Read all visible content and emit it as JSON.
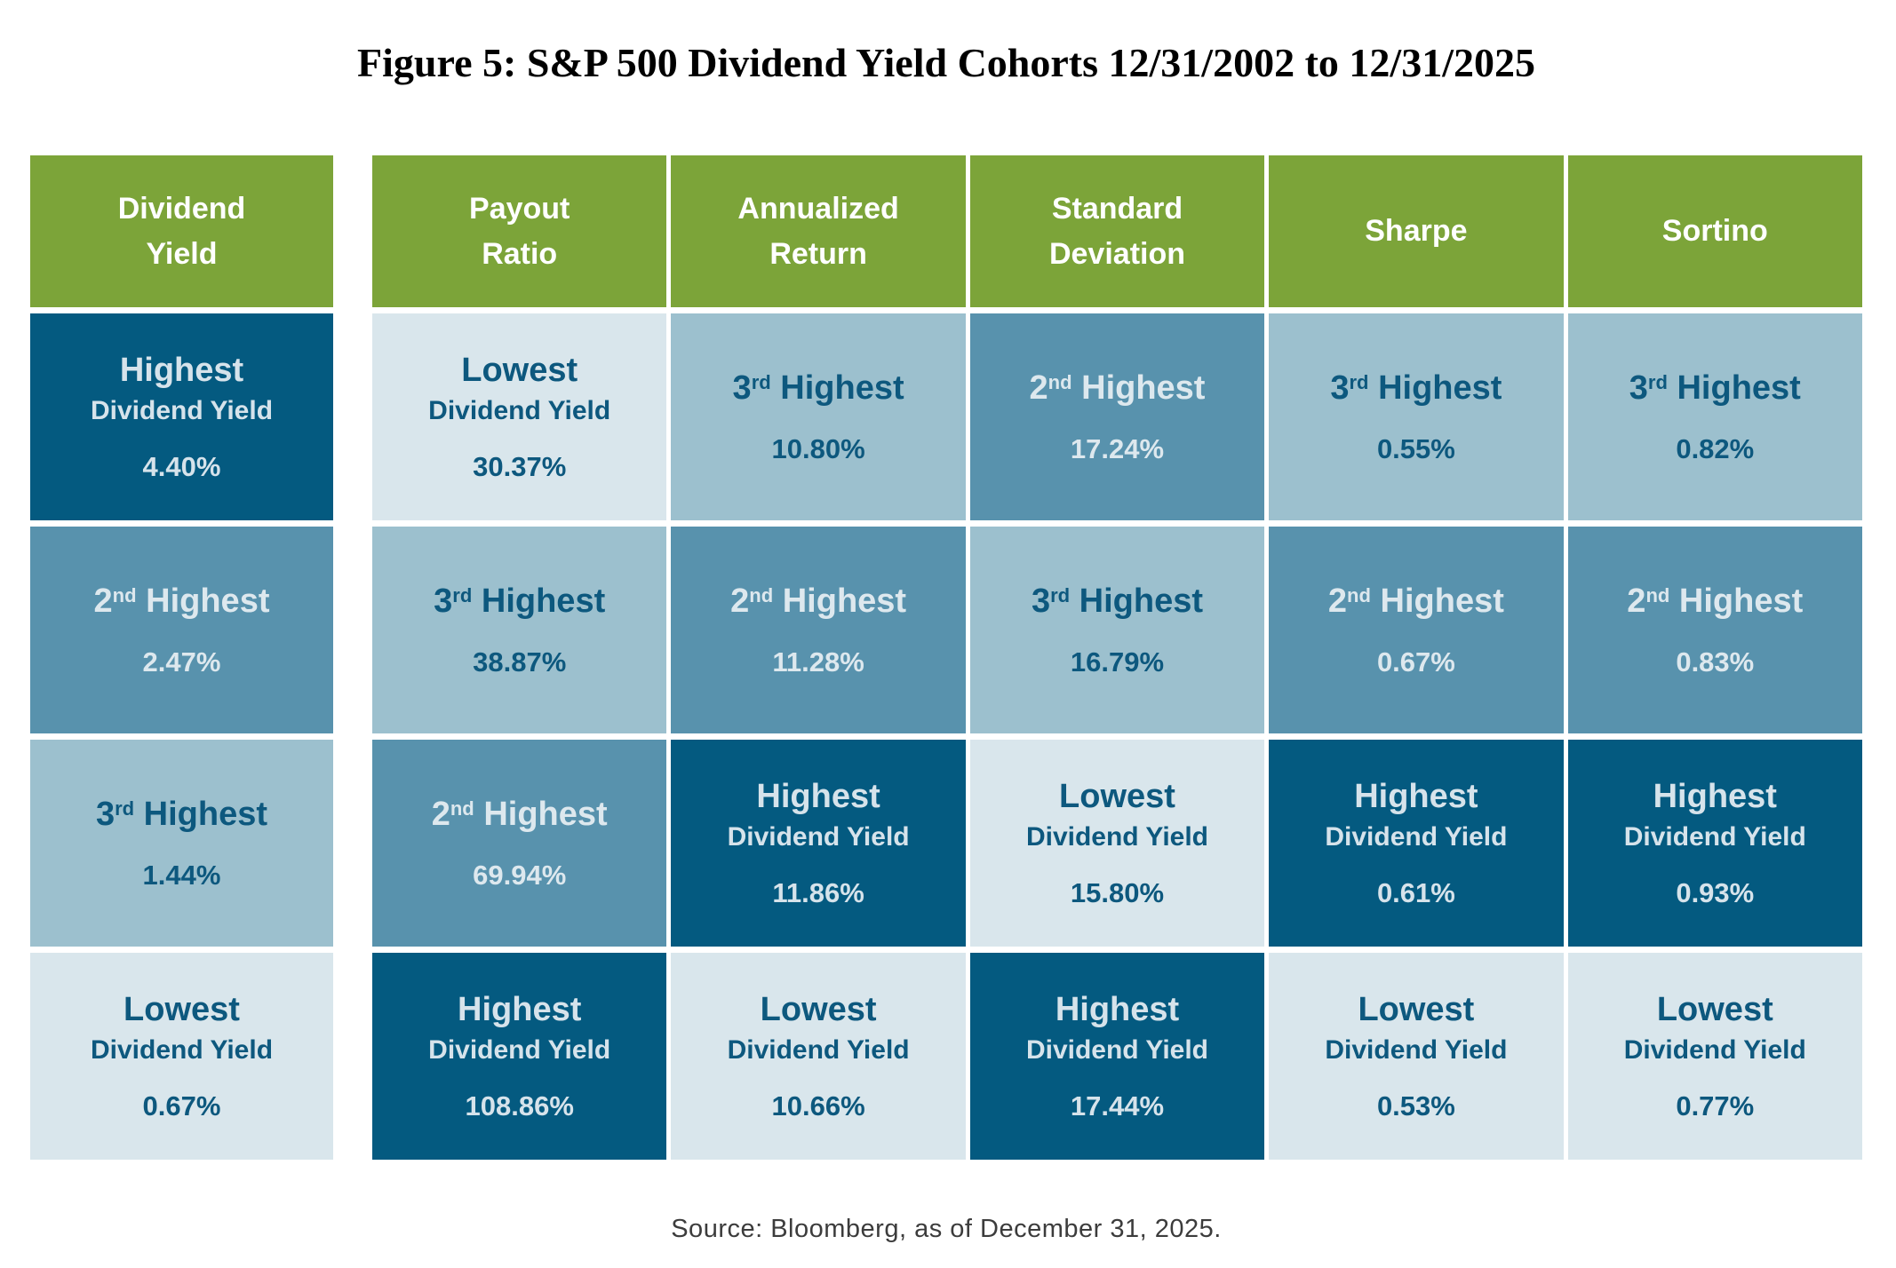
{
  "title": "Figure 5: S&P 500 Dividend Yield Cohorts 12/31/2002 to 12/31/2025",
  "source": "Source: Bloomberg, as of December 31, 2025.",
  "colors": {
    "header_green": "#7ca439",
    "dark": "#045a80",
    "medium": "#5892ad",
    "light": "#9cc0ce",
    "lightest": "#d9e6ec",
    "text_on_dark": "#d6e3eb",
    "text_on_medium": "#dde8ee",
    "text_on_light": "#0d587e"
  },
  "chart_data": {
    "type": "table",
    "title": "S&P 500 Dividend Yield Cohorts 12/31/2002 to 12/31/2025",
    "columns": [
      {
        "key": "dividend-yield",
        "label": [
          "Dividend",
          "Yield"
        ]
      },
      {
        "key": "payout-ratio",
        "label": [
          "Payout",
          "Ratio"
        ]
      },
      {
        "key": "annualized-return",
        "label": [
          "Annualized",
          "Return"
        ]
      },
      {
        "key": "standard-deviation",
        "label": [
          "Standard",
          "Deviation"
        ]
      },
      {
        "key": "sharpe",
        "label": [
          "Sharpe"
        ]
      },
      {
        "key": "sortino",
        "label": [
          "Sortino"
        ]
      }
    ],
    "rows": [
      [
        {
          "rank": "Highest",
          "sublabel": "Dividend Yield",
          "value": "4.40%",
          "tone": "dark"
        },
        {
          "rank": "Lowest",
          "sublabel": "Dividend Yield",
          "value": "30.37%",
          "tone": "lightest"
        },
        {
          "rank": "3rd Highest",
          "value": "10.80%",
          "tone": "light"
        },
        {
          "rank": "2nd Highest",
          "value": "17.24%",
          "tone": "medium"
        },
        {
          "rank": "3rd Highest",
          "value": "0.55%",
          "tone": "light"
        },
        {
          "rank": "3rd Highest",
          "value": "0.82%",
          "tone": "light"
        }
      ],
      [
        {
          "rank": "2nd Highest",
          "value": "2.47%",
          "tone": "medium"
        },
        {
          "rank": "3rd Highest",
          "value": "38.87%",
          "tone": "light"
        },
        {
          "rank": "2nd Highest",
          "value": "11.28%",
          "tone": "medium"
        },
        {
          "rank": "3rd Highest",
          "value": "16.79%",
          "tone": "light"
        },
        {
          "rank": "2nd Highest",
          "value": "0.67%",
          "tone": "medium"
        },
        {
          "rank": "2nd Highest",
          "value": "0.83%",
          "tone": "medium"
        }
      ],
      [
        {
          "rank": "3rd Highest",
          "value": "1.44%",
          "tone": "light"
        },
        {
          "rank": "2nd Highest",
          "value": "69.94%",
          "tone": "medium"
        },
        {
          "rank": "Highest",
          "sublabel": "Dividend Yield",
          "value": "11.86%",
          "tone": "dark"
        },
        {
          "rank": "Lowest",
          "sublabel": "Dividend Yield",
          "value": "15.80%",
          "tone": "lightest"
        },
        {
          "rank": "Highest",
          "sublabel": "Dividend Yield",
          "value": "0.61%",
          "tone": "dark"
        },
        {
          "rank": "Highest",
          "sublabel": "Dividend Yield",
          "value": "0.93%",
          "tone": "dark"
        }
      ],
      [
        {
          "rank": "Lowest",
          "sublabel": "Dividend Yield",
          "value": "0.67%",
          "tone": "lightest"
        },
        {
          "rank": "Highest",
          "sublabel": "Dividend Yield",
          "value": "108.86%",
          "tone": "dark"
        },
        {
          "rank": "Lowest",
          "sublabel": "Dividend Yield",
          "value": "10.66%",
          "tone": "lightest"
        },
        {
          "rank": "Highest",
          "sublabel": "Dividend Yield",
          "value": "17.44%",
          "tone": "dark"
        },
        {
          "rank": "Lowest",
          "sublabel": "Dividend Yield",
          "value": "0.53%",
          "tone": "lightest"
        },
        {
          "rank": "Lowest",
          "sublabel": "Dividend Yield",
          "value": "0.77%",
          "tone": "lightest"
        }
      ]
    ]
  }
}
